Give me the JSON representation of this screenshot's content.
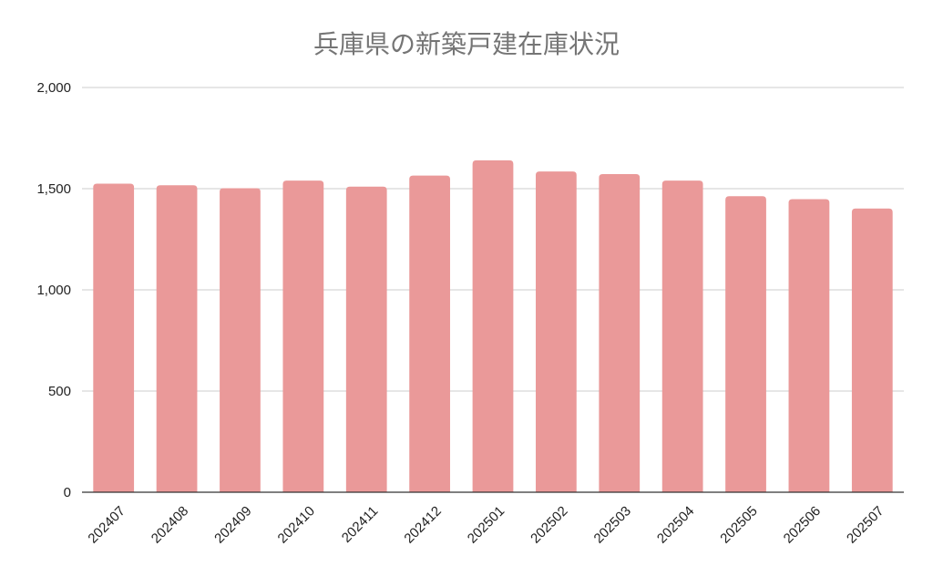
{
  "chart_data": {
    "type": "bar",
    "title": "兵庫県の新築戸建在庫状況",
    "xlabel": "",
    "ylabel": "",
    "categories": [
      "202407",
      "202408",
      "202409",
      "202410",
      "202411",
      "202412",
      "202501",
      "202502",
      "202503",
      "202504",
      "202505",
      "202506",
      "202507"
    ],
    "values": [
      1525,
      1517,
      1502,
      1540,
      1510,
      1565,
      1640,
      1585,
      1572,
      1540,
      1463,
      1448,
      1402
    ],
    "ylim": [
      0,
      2000
    ],
    "yticks": [
      0,
      500,
      1000,
      1500,
      2000
    ],
    "ytick_labels": [
      "0",
      "500",
      "1,000",
      "1,500",
      "2,000"
    ],
    "grid": true,
    "legend": "none",
    "bar_color": "#ea9999"
  }
}
